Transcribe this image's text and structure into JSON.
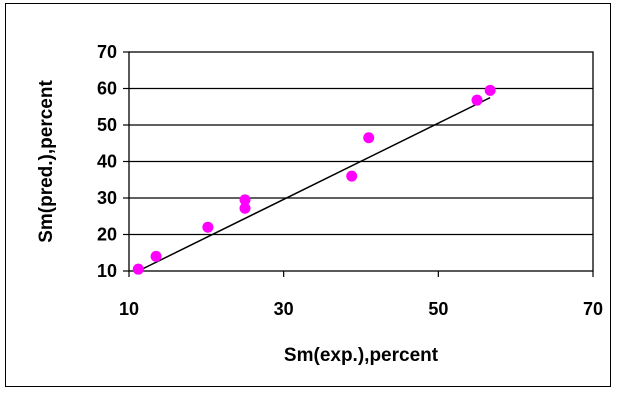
{
  "chart_data": {
    "type": "scatter",
    "xlabel": "Sm(exp.),percent",
    "ylabel": "Sm(pred.),percent",
    "xlim": [
      10,
      70
    ],
    "ylim": [
      10,
      70
    ],
    "xticks": [
      10,
      30,
      50,
      70
    ],
    "yticks": [
      10,
      20,
      30,
      40,
      50,
      60,
      70
    ],
    "grid": "horizontal",
    "legend": "none",
    "series": [
      {
        "marker_color": "#ff00ff",
        "points": [
          {
            "x": 11.2,
            "y": 10.5
          },
          {
            "x": 13.5,
            "y": 14.0
          },
          {
            "x": 20.2,
            "y": 22.0
          },
          {
            "x": 25.0,
            "y": 27.2
          },
          {
            "x": 25.0,
            "y": 29.5
          },
          {
            "x": 38.8,
            "y": 36.0
          },
          {
            "x": 41.0,
            "y": 46.5
          },
          {
            "x": 55.0,
            "y": 56.8
          },
          {
            "x": 56.7,
            "y": 59.5
          }
        ]
      }
    ],
    "trendline": {
      "color": "#000000",
      "x": [
        11.2,
        56.7
      ],
      "y": [
        10.0,
        57.5
      ]
    }
  }
}
